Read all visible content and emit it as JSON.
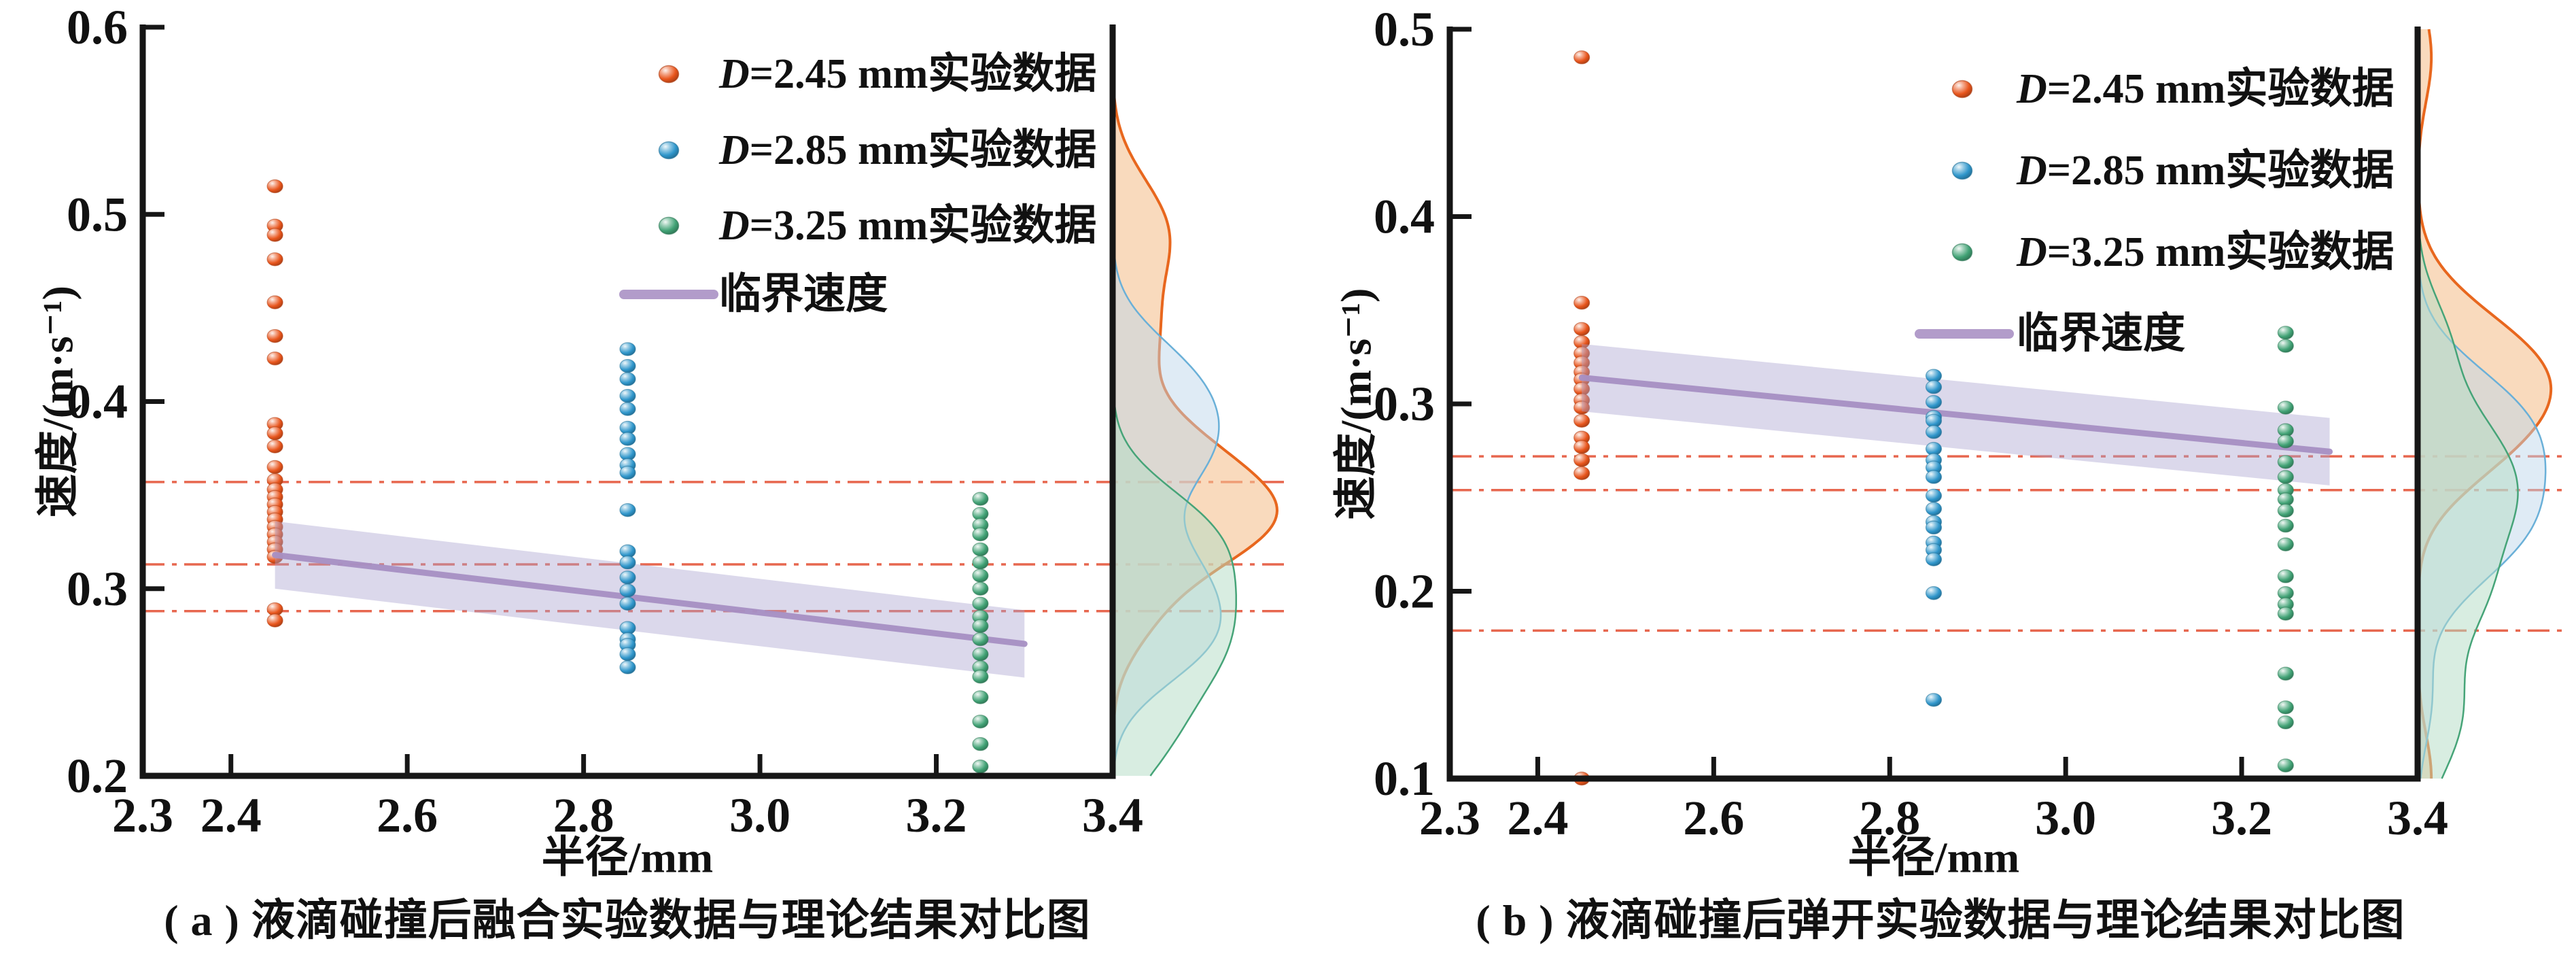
{
  "figure": {
    "background": "#ffffff",
    "text_color": "#111111"
  },
  "chart_data": [
    {
      "id": "a",
      "type": "scatter",
      "caption": "( a ) 液滴碰撞后融合实验数据与理论结果对比图",
      "xlabel": "半径/mm",
      "ylabel": "速度/(m·s⁻¹)",
      "xlim": [
        2.3,
        3.4
      ],
      "ylim": [
        0.2,
        0.6
      ],
      "grid": false,
      "legend_position": "top-right",
      "xticks": [
        {
          "label": "2.3",
          "value": 2.3
        },
        {
          "label": "2.4",
          "value": 2.4
        },
        {
          "label": "2.6",
          "value": 2.6
        },
        {
          "label": "2.8",
          "value": 2.8
        },
        {
          "label": "3.0",
          "value": 3.0
        },
        {
          "label": "3.2",
          "value": 3.2
        },
        {
          "label": "3.4",
          "value": 3.4
        }
      ],
      "yticks": [
        {
          "label": "0.2",
          "value": 0.2
        },
        {
          "label": "0.3",
          "value": 0.3
        },
        {
          "label": "0.4",
          "value": 0.4
        },
        {
          "label": "0.5",
          "value": 0.5
        },
        {
          "label": "0.6",
          "value": 0.6
        }
      ],
      "series": [
        {
          "name": "D=2.45 mm实验数据",
          "marker_color": "#e8551c",
          "density_stroke": "#e8671e",
          "density_fill": "#f5c291",
          "density_fill_opacity": 0.6,
          "x": 2.45,
          "values": [
            0.515,
            0.494,
            0.489,
            0.476,
            0.453,
            0.435,
            0.423,
            0.388,
            0.383,
            0.376,
            0.365,
            0.358,
            0.353,
            0.349,
            0.345,
            0.341,
            0.337,
            0.333,
            0.329,
            0.325,
            0.321,
            0.317,
            0.289,
            0.283
          ]
        },
        {
          "name": "D=2.85 mm实验数据",
          "marker_color": "#2f96cb",
          "density_stroke": "#6ab0d8",
          "density_fill": "#bdd6ea",
          "density_fill_opacity": 0.48,
          "x": 2.85,
          "values": [
            0.428,
            0.419,
            0.412,
            0.403,
            0.396,
            0.386,
            0.38,
            0.372,
            0.366,
            0.362,
            0.342,
            0.32,
            0.314,
            0.306,
            0.299,
            0.292,
            0.279,
            0.273,
            0.27,
            0.265,
            0.258
          ]
        },
        {
          "name": "D=3.25 mm实验数据",
          "marker_color": "#41a275",
          "density_stroke": "#46a478",
          "density_fill": "#b4ddc5",
          "density_fill_opacity": 0.52,
          "x": 3.25,
          "values": [
            0.348,
            0.34,
            0.334,
            0.329,
            0.321,
            0.314,
            0.307,
            0.3,
            0.292,
            0.285,
            0.28,
            0.273,
            0.265,
            0.258,
            0.253,
            0.242,
            0.229,
            0.217,
            0.205
          ]
        }
      ],
      "critical_line": {
        "label": "临界速度",
        "color": "#a78fc3",
        "band_color": "#aaa3d0",
        "x": [
          2.45,
          3.3
        ],
        "y": [
          0.318,
          0.2705
        ],
        "band_halfwidth": 0.018
      },
      "ref_lines": {
        "color": "#e4573c",
        "values": [
          0.357,
          0.313,
          0.288
        ]
      },
      "marginal": {
        "bandwidth": 0.022,
        "max_width_frac": 0.92
      }
    },
    {
      "id": "b",
      "type": "scatter",
      "caption": "( b ) 液滴碰撞后弹开实验数据与理论结果对比图",
      "xlabel": "半径/mm",
      "ylabel": "速度/(m·s⁻¹)",
      "xlim": [
        2.3,
        3.4
      ],
      "ylim": [
        0.1,
        0.5
      ],
      "grid": false,
      "legend_position": "top-right",
      "xticks": [
        {
          "label": "2.3",
          "value": 2.3
        },
        {
          "label": "2.4",
          "value": 2.4
        },
        {
          "label": "2.6",
          "value": 2.6
        },
        {
          "label": "2.8",
          "value": 2.8
        },
        {
          "label": "3.0",
          "value": 3.0
        },
        {
          "label": "3.2",
          "value": 3.2
        },
        {
          "label": "3.4",
          "value": 3.4
        }
      ],
      "yticks": [
        {
          "label": "0.1",
          "value": 0.1
        },
        {
          "label": "0.2",
          "value": 0.2
        },
        {
          "label": "0.3",
          "value": 0.3
        },
        {
          "label": "0.4",
          "value": 0.4
        },
        {
          "label": "0.5",
          "value": 0.5
        }
      ],
      "series": [
        {
          "name": "D=2.45 mm实验数据",
          "marker_color": "#e8551c",
          "density_stroke": "#e8671e",
          "density_fill": "#f5c291",
          "density_fill_opacity": 0.6,
          "x": 2.45,
          "values": [
            0.485,
            0.354,
            0.34,
            0.333,
            0.327,
            0.322,
            0.317,
            0.313,
            0.308,
            0.302,
            0.298,
            0.291,
            0.282,
            0.277,
            0.27,
            0.263,
            0.1
          ]
        },
        {
          "name": "D=2.85 mm实验数据",
          "marker_color": "#2f96cb",
          "density_stroke": "#6ab0d8",
          "density_fill": "#bdd6ea",
          "density_fill_opacity": 0.48,
          "x": 2.85,
          "values": [
            0.315,
            0.309,
            0.301,
            0.293,
            0.291,
            0.285,
            0.276,
            0.27,
            0.266,
            0.261,
            0.251,
            0.244,
            0.237,
            0.234,
            0.226,
            0.222,
            0.217,
            0.199,
            0.142
          ]
        },
        {
          "name": "D=3.25 mm实验数据",
          "marker_color": "#41a275",
          "density_stroke": "#46a478",
          "density_fill": "#b4ddc5",
          "density_fill_opacity": 0.52,
          "x": 3.25,
          "values": [
            0.338,
            0.331,
            0.298,
            0.286,
            0.28,
            0.269,
            0.261,
            0.254,
            0.249,
            0.243,
            0.235,
            0.225,
            0.208,
            0.199,
            0.193,
            0.188,
            0.156,
            0.138,
            0.13,
            0.107
          ]
        }
      ],
      "critical_line": {
        "label": "临界速度",
        "color": "#a78fc3",
        "band_color": "#aaa3d0",
        "x": [
          2.45,
          3.3
        ],
        "y": [
          0.314,
          0.2745
        ],
        "band_halfwidth": 0.018
      },
      "ref_lines": {
        "color": "#e4573c",
        "values": [
          0.272,
          0.254,
          0.179
        ]
      },
      "marginal": {
        "bandwidth": 0.024,
        "max_width_frac": 0.9
      }
    }
  ]
}
